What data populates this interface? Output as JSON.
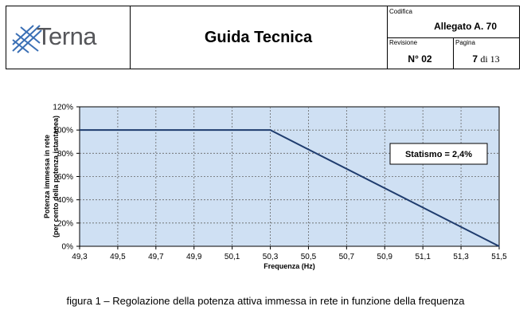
{
  "header": {
    "logo_text": "Terna",
    "title": "Guida Tecnica",
    "codifica_label": "Codifica",
    "codifica_value": "Allegato A. 70",
    "revisione_label": "Revisione",
    "revisione_value": "N° 02",
    "pagina_label": "Pagina",
    "pagina_number": "7",
    "pagina_of": "di 13"
  },
  "colors": {
    "plot_background": "#cfe0f3",
    "line": "#1f3c6e",
    "logo_blue": "#3a6fb5",
    "logo_gray": "#55565a"
  },
  "chart_data": {
    "type": "line",
    "title": "",
    "xlabel": "Frequenza (Hz)",
    "ylabel": "Potenza immessa in rete (per cento della potenza istantanea)",
    "ylabel_lines": [
      "Potenza immessa in rete",
      "(per cento della potenza istantanea)"
    ],
    "xlim": [
      49.3,
      51.5
    ],
    "ylim": [
      0,
      120
    ],
    "x_ticks": [
      "49,3",
      "49,5",
      "49,7",
      "49,9",
      "50,1",
      "50,3",
      "50,5",
      "50,7",
      "50,9",
      "51,1",
      "51,3",
      "51,5"
    ],
    "y_ticks": [
      "0%",
      "20%",
      "40%",
      "60%",
      "80%",
      "100%",
      "120%"
    ],
    "grid": true,
    "series": [
      {
        "x": [
          49.3,
          50.3,
          51.5
        ],
        "y": [
          100,
          100,
          0
        ]
      }
    ],
    "annotation": "Statismo = 2,4%"
  },
  "caption": "figura 1 – Regolazione della potenza attiva immessa in rete in funzione della frequenza"
}
